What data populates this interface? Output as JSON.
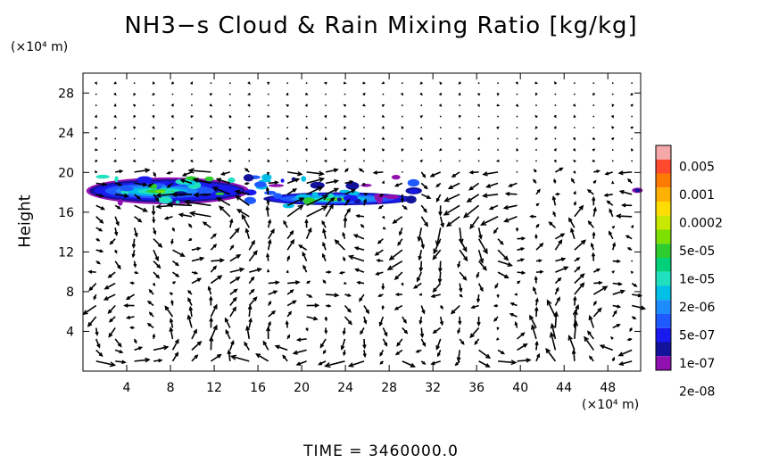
{
  "title": "NH3−s Cloud & Rain Mixing Ratio [kg/kg]",
  "y_unit": "(×10⁴ m)",
  "x_unit": "(×10⁴ m)",
  "ylabel": "Height",
  "time_label": "TIME  =  3460000.0",
  "chart_data": {
    "type": "heatmap",
    "title": "NH3−s Cloud & Rain Mixing Ratio [kg/kg]",
    "xlabel": "",
    "ylabel": "Height",
    "xlim": [
      0,
      51
    ],
    "ylim": [
      0,
      30
    ],
    "xticks": [
      4,
      8,
      12,
      16,
      20,
      24,
      28,
      32,
      36,
      40,
      44,
      48
    ],
    "yticks": [
      4,
      8,
      12,
      16,
      20,
      24,
      28
    ],
    "colorbar": {
      "labels": [
        "0.005",
        "0.001",
        "0.0002",
        "5e-05",
        "1e-05",
        "2e-06",
        "5e-07",
        "1e-07",
        "2e-08"
      ],
      "colors": [
        "#f4a8a8",
        "#ff4a30",
        "#ff7a00",
        "#ffb000",
        "#ffdd00",
        "#c8e800",
        "#7ee000",
        "#2ecc2e",
        "#00d07a",
        "#20e0c0",
        "#00c0e8",
        "#1e8cff",
        "#1e5aff",
        "#1a1aee",
        "#12129a",
        "#9010b0"
      ]
    },
    "cloud_layer": {
      "x_range": [
        0,
        31
      ],
      "y_range": [
        16.5,
        19.5
      ],
      "peak_centers": [
        [
          7,
          17.5
        ],
        [
          23,
          17.0
        ]
      ]
    },
    "vector_field": "wind vectors drawn over entire domain"
  }
}
